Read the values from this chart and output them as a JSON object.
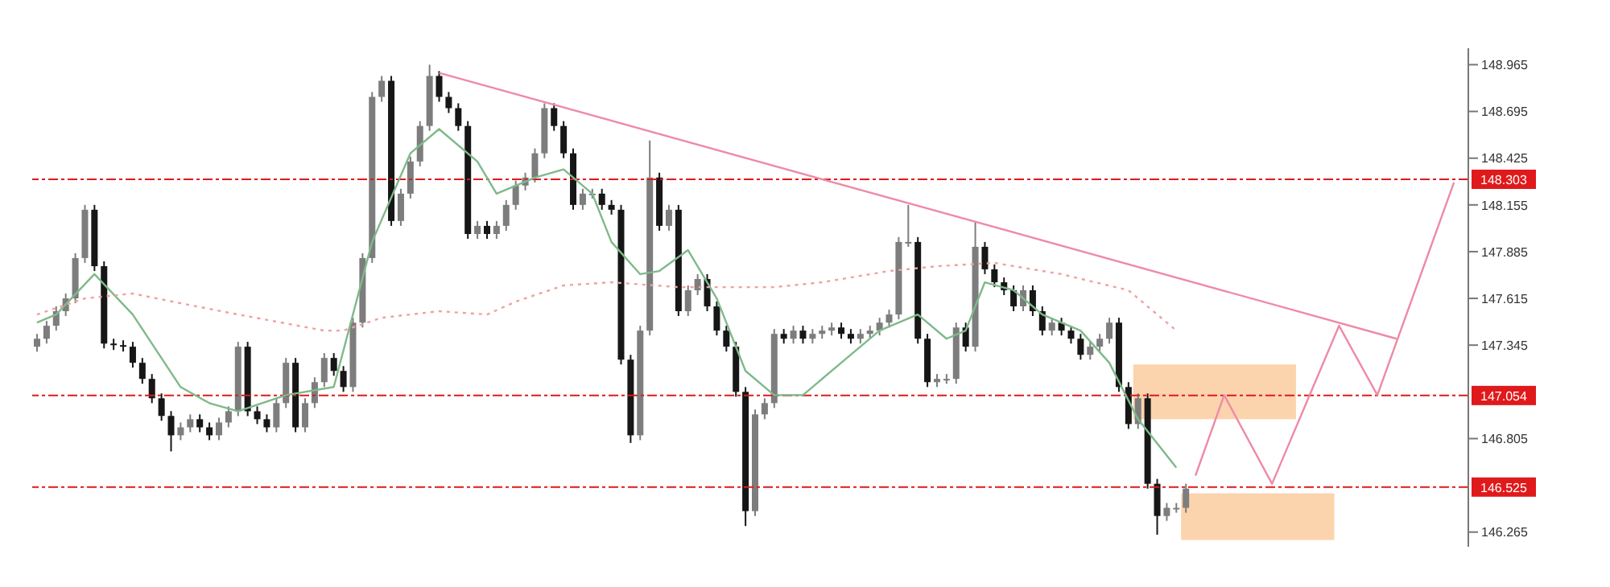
{
  "chart_data": {
    "type": "candlestick",
    "categories": [
      null,
      null,
      null,
      null,
      null,
      null,
      null,
      null,
      null,
      null,
      null,
      null,
      null,
      null,
      null,
      null,
      null,
      null,
      null,
      null,
      null,
      null,
      null,
      null,
      null,
      null,
      null,
      null,
      null,
      null,
      null,
      null,
      null,
      null,
      null,
      null,
      null,
      null,
      null,
      null,
      null,
      null,
      null,
      null,
      null,
      null,
      null,
      null,
      null,
      null,
      null,
      null,
      null,
      null,
      null,
      null,
      null,
      null,
      null,
      null,
      null,
      null,
      null,
      null,
      null,
      null,
      null,
      null,
      null,
      null,
      null,
      null,
      null,
      null,
      null,
      null,
      null,
      null,
      null,
      null,
      null,
      null,
      null,
      null,
      null,
      null,
      null,
      null,
      null,
      null,
      null,
      null,
      null,
      null,
      null,
      null,
      null,
      null,
      null,
      null,
      null,
      null,
      null,
      null,
      null,
      null,
      null,
      null,
      null,
      null,
      null,
      null,
      null,
      null,
      null,
      null,
      null,
      null,
      null,
      null,
      null,
      null,
      null,
      null,
      null,
      null,
      null,
      null,
      null,
      null,
      null,
      null,
      null,
      null,
      null,
      null,
      null,
      null,
      null,
      null,
      null,
      null,
      null,
      null,
      null,
      null,
      null,
      null,
      null,
      null
    ],
    "ohlc": [
      [
        147.336,
        147.41,
        147.308,
        147.382
      ],
      [
        147.382,
        147.485,
        147.354,
        147.457
      ],
      [
        147.457,
        147.569,
        147.429,
        147.541
      ],
      [
        147.541,
        147.643,
        147.513,
        147.615
      ],
      [
        147.615,
        147.876,
        147.587,
        147.848
      ],
      [
        147.848,
        148.155,
        147.82,
        148.127
      ],
      [
        148.127,
        148.155,
        147.773,
        147.801
      ],
      [
        147.801,
        147.829,
        147.326,
        147.354
      ],
      [
        147.354,
        147.382,
        147.317,
        147.345
      ],
      [
        147.345,
        147.373,
        147.308,
        147.336
      ],
      [
        147.336,
        147.364,
        147.215,
        147.243
      ],
      [
        147.243,
        147.271,
        147.122,
        147.15
      ],
      [
        147.15,
        147.178,
        147.01,
        147.038
      ],
      [
        147.038,
        147.066,
        146.908,
        146.936
      ],
      [
        146.936,
        146.964,
        146.731,
        146.824
      ],
      [
        146.824,
        146.898,
        146.796,
        146.87
      ],
      [
        146.87,
        146.945,
        146.842,
        146.917
      ],
      [
        146.917,
        146.945,
        146.842,
        146.87
      ],
      [
        146.87,
        146.898,
        146.796,
        146.824
      ],
      [
        146.824,
        146.926,
        146.796,
        146.898
      ],
      [
        146.898,
        146.991,
        146.87,
        146.963
      ],
      [
        146.963,
        147.364,
        146.935,
        147.336
      ],
      [
        147.336,
        147.364,
        146.935,
        146.963
      ],
      [
        146.963,
        146.991,
        146.889,
        146.917
      ],
      [
        146.917,
        146.945,
        146.842,
        146.87
      ],
      [
        146.87,
        147.038,
        146.842,
        147.01
      ],
      [
        147.01,
        147.271,
        146.982,
        147.243
      ],
      [
        147.243,
        147.271,
        146.842,
        146.87
      ],
      [
        146.87,
        147.038,
        146.842,
        147.01
      ],
      [
        147.01,
        147.159,
        146.982,
        147.131
      ],
      [
        147.131,
        147.299,
        147.103,
        147.271
      ],
      [
        147.271,
        147.299,
        147.168,
        147.196
      ],
      [
        147.196,
        147.224,
        147.075,
        147.103
      ],
      [
        147.103,
        147.503,
        147.075,
        147.475
      ],
      [
        147.475,
        147.876,
        147.447,
        147.848
      ],
      [
        147.848,
        148.807,
        147.82,
        148.779
      ],
      [
        148.779,
        148.9,
        148.751,
        148.872
      ],
      [
        148.872,
        148.9,
        148.034,
        148.062
      ],
      [
        148.062,
        148.248,
        148.034,
        148.22
      ],
      [
        148.22,
        148.434,
        148.192,
        148.406
      ],
      [
        148.406,
        148.639,
        148.378,
        148.611
      ],
      [
        148.611,
        148.965,
        148.583,
        148.9
      ],
      [
        148.9,
        148.928,
        148.751,
        148.779
      ],
      [
        148.779,
        148.807,
        148.686,
        148.714
      ],
      [
        148.714,
        148.742,
        148.583,
        148.611
      ],
      [
        148.611,
        148.639,
        147.959,
        147.987
      ],
      [
        147.987,
        148.062,
        147.959,
        148.034
      ],
      [
        148.034,
        148.062,
        147.959,
        147.987
      ],
      [
        147.987,
        148.062,
        147.959,
        148.034
      ],
      [
        148.034,
        148.183,
        148.006,
        148.155
      ],
      [
        148.155,
        148.295,
        148.127,
        148.267
      ],
      [
        148.267,
        148.341,
        148.239,
        148.313
      ],
      [
        148.313,
        148.481,
        148.285,
        148.453
      ],
      [
        148.453,
        148.742,
        148.425,
        148.714
      ],
      [
        148.714,
        148.742,
        148.583,
        148.611
      ],
      [
        148.611,
        148.639,
        148.425,
        148.453
      ],
      [
        148.453,
        148.481,
        148.127,
        148.155
      ],
      [
        148.155,
        148.248,
        148.127,
        148.22
      ],
      [
        148.22,
        148.248,
        148.192,
        148.22
      ],
      [
        148.22,
        148.248,
        148.127,
        148.155
      ],
      [
        148.155,
        148.183,
        148.099,
        148.127
      ],
      [
        148.127,
        148.155,
        147.233,
        147.261
      ],
      [
        147.261,
        147.289,
        146.78,
        146.824
      ],
      [
        146.824,
        147.457,
        146.796,
        147.429
      ],
      [
        147.429,
        148.527,
        147.401,
        148.313
      ],
      [
        148.313,
        148.341,
        148.006,
        148.034
      ],
      [
        148.034,
        148.155,
        148.006,
        148.127
      ],
      [
        148.127,
        148.155,
        147.513,
        147.541
      ],
      [
        147.541,
        147.69,
        147.513,
        147.662
      ],
      [
        147.662,
        147.755,
        147.634,
        147.727
      ],
      [
        147.727,
        147.755,
        147.541,
        147.569
      ],
      [
        147.569,
        147.597,
        147.401,
        147.429
      ],
      [
        147.429,
        147.457,
        147.308,
        147.336
      ],
      [
        147.336,
        147.364,
        147.047,
        147.075
      ],
      [
        147.075,
        147.103,
        146.3,
        146.386
      ],
      [
        146.386,
        146.973,
        146.358,
        146.945
      ],
      [
        146.945,
        147.038,
        146.917,
        147.01
      ],
      [
        147.01,
        147.438,
        146.982,
        147.41
      ],
      [
        147.41,
        147.438,
        147.354,
        147.382
      ],
      [
        147.382,
        147.457,
        147.354,
        147.429
      ],
      [
        147.429,
        147.457,
        147.354,
        147.382
      ],
      [
        147.382,
        147.438,
        147.354,
        147.41
      ],
      [
        147.41,
        147.457,
        147.382,
        147.429
      ],
      [
        147.429,
        147.475,
        147.401,
        147.447
      ],
      [
        147.447,
        147.475,
        147.382,
        147.41
      ],
      [
        147.41,
        147.438,
        147.354,
        147.382
      ],
      [
        147.382,
        147.438,
        147.354,
        147.41
      ],
      [
        147.41,
        147.457,
        147.382,
        147.429
      ],
      [
        147.429,
        147.503,
        147.401,
        147.475
      ],
      [
        147.475,
        147.55,
        147.447,
        147.522
      ],
      [
        147.522,
        147.969,
        147.494,
        147.941
      ],
      [
        147.941,
        148.155,
        147.913,
        147.941
      ],
      [
        147.941,
        147.969,
        147.354,
        147.382
      ],
      [
        147.382,
        147.41,
        147.103,
        147.131
      ],
      [
        147.131,
        147.178,
        147.103,
        147.15
      ],
      [
        147.15,
        147.178,
        147.122,
        147.15
      ],
      [
        147.15,
        147.475,
        147.122,
        147.447
      ],
      [
        147.447,
        147.475,
        147.308,
        147.336
      ],
      [
        147.336,
        148.053,
        147.308,
        147.913
      ],
      [
        147.913,
        147.941,
        147.755,
        147.783
      ],
      [
        147.783,
        147.811,
        147.68,
        147.708
      ],
      [
        147.708,
        147.736,
        147.634,
        147.662
      ],
      [
        147.662,
        147.69,
        147.541,
        147.569
      ],
      [
        147.569,
        147.69,
        147.541,
        147.662
      ],
      [
        147.662,
        147.69,
        147.513,
        147.541
      ],
      [
        147.541,
        147.569,
        147.401,
        147.429
      ],
      [
        147.429,
        147.503,
        147.401,
        147.475
      ],
      [
        147.475,
        147.503,
        147.401,
        147.429
      ],
      [
        147.429,
        147.457,
        147.354,
        147.382
      ],
      [
        147.382,
        147.41,
        147.261,
        147.289
      ],
      [
        147.289,
        147.364,
        147.261,
        147.336
      ],
      [
        147.336,
        147.41,
        147.308,
        147.382
      ],
      [
        147.382,
        147.503,
        147.354,
        147.475
      ],
      [
        147.475,
        147.503,
        147.075,
        147.103
      ],
      [
        147.103,
        147.131,
        146.861,
        146.889
      ],
      [
        146.889,
        147.066,
        146.861,
        147.038
      ],
      [
        147.038,
        147.066,
        146.516,
        146.544
      ],
      [
        146.544,
        146.572,
        146.25,
        146.358
      ],
      [
        146.358,
        146.433,
        146.33,
        146.405
      ],
      [
        146.405,
        146.433,
        146.377,
        146.405
      ],
      [
        146.405,
        146.544,
        146.377,
        146.516
      ],
      null,
      null,
      null,
      null,
      null,
      null,
      null,
      null,
      null,
      null,
      null,
      null,
      null,
      null,
      null,
      null,
      null,
      null,
      null,
      null,
      null,
      null,
      null,
      null,
      null,
      null,
      null,
      null,
      null
    ],
    "series": [
      {
        "type": "line",
        "color": "#7fb98a",
        "line_style": "solid",
        "values": [
          147.475,
          null,
          147.522,
          null,
          null,
          null,
          147.755,
          null,
          null,
          null,
          147.522,
          null,
          null,
          null,
          null,
          147.103,
          null,
          null,
          147.01,
          null,
          null,
          146.963,
          null,
          null,
          null,
          null,
          147.056,
          null,
          null,
          null,
          null,
          147.103,
          null,
          null,
          null,
          147.941,
          null,
          null,
          null,
          148.453,
          null,
          null,
          148.593,
          null,
          null,
          null,
          148.406,
          null,
          148.22,
          null,
          null,
          null,
          148.313,
          null,
          null,
          148.36,
          null,
          null,
          148.22,
          null,
          147.941,
          null,
          null,
          147.755,
          null,
          147.773,
          null,
          null,
          147.894,
          null,
          null,
          147.615,
          null,
          null,
          147.196,
          null,
          null,
          147.056,
          null,
          null,
          147.056,
          null,
          null,
          null,
          147.243,
          null,
          null,
          null,
          147.429,
          null,
          147.475,
          null,
          147.522,
          null,
          null,
          147.382,
          null,
          147.429,
          null,
          147.708,
          null,
          null,
          147.662,
          null,
          null,
          147.522,
          null,
          null,
          null,
          147.429,
          null,
          null,
          147.243,
          null,
          null,
          146.917,
          null,
          null,
          null,
          146.638,
          null,
          null,
          null,
          null,
          null,
          null,
          null,
          null,
          null,
          null,
          null,
          null,
          null,
          null,
          null,
          null,
          null,
          null,
          null,
          null,
          null,
          null,
          null,
          null,
          null,
          null,
          null,
          null,
          null,
          null
        ]
      },
      {
        "type": "line",
        "color": "#f2a0a0",
        "line_style": "dotted",
        "values": [
          147.522,
          null,
          null,
          null,
          null,
          147.615,
          null,
          null,
          null,
          null,
          147.643,
          null,
          null,
          null,
          null,
          147.587,
          null,
          null,
          null,
          null,
          null,
          147.522,
          null,
          null,
          null,
          null,
          null,
          null,
          null,
          null,
          147.429,
          null,
          147.429,
          null,
          null,
          null,
          147.503,
          null,
          null,
          null,
          null,
          null,
          147.541,
          null,
          null,
          null,
          null,
          147.522,
          null,
          null,
          147.596,
          null,
          null,
          null,
          null,
          147.69,
          null,
          null,
          null,
          null,
          147.708,
          null,
          null,
          null,
          null,
          null,
          null,
          147.68,
          null,
          null,
          null,
          null,
          147.68,
          null,
          null,
          null,
          null,
          147.68,
          null,
          null,
          null,
          null,
          147.708,
          null,
          null,
          null,
          null,
          null,
          null,
          147.773,
          null,
          null,
          null,
          null,
          147.801,
          null,
          null,
          null,
          null,
          null,
          147.82,
          null,
          null,
          null,
          null,
          null,
          null,
          147.755,
          null,
          null,
          null,
          null,
          null,
          null,
          147.662,
          null,
          null,
          null,
          null,
          147.429,
          null,
          null,
          null,
          null,
          null,
          null,
          null,
          null,
          null,
          null,
          null,
          null,
          null,
          null,
          null,
          null,
          null,
          null,
          null,
          null,
          null,
          null,
          null,
          null,
          null,
          null,
          null,
          null,
          null,
          null
        ]
      },
      {
        "type": "line",
        "color": "#ee8aa6",
        "line_style": "solid",
        "values": [
          null,
          null,
          null,
          null,
          null,
          null,
          null,
          null,
          null,
          null,
          null,
          null,
          null,
          null,
          null,
          null,
          null,
          null,
          null,
          null,
          null,
          null,
          null,
          null,
          null,
          null,
          null,
          null,
          null,
          null,
          null,
          null,
          null,
          null,
          null,
          null,
          null,
          null,
          null,
          null,
          null,
          null,
          148.918,
          null,
          null,
          null,
          null,
          null,
          null,
          null,
          null,
          null,
          null,
          null,
          null,
          null,
          null,
          null,
          null,
          null,
          null,
          null,
          null,
          null,
          null,
          null,
          null,
          null,
          null,
          null,
          null,
          null,
          null,
          null,
          null,
          null,
          null,
          null,
          null,
          null,
          null,
          null,
          null,
          null,
          null,
          null,
          null,
          null,
          null,
          null,
          null,
          null,
          null,
          null,
          null,
          null,
          null,
          null,
          null,
          null,
          null,
          null,
          null,
          null,
          null,
          null,
          null,
          null,
          null,
          null,
          null,
          null,
          null,
          null,
          null,
          null,
          null,
          null,
          null,
          null,
          null,
          null,
          null,
          null,
          null,
          null,
          null,
          null,
          null,
          null,
          null,
          null,
          null,
          null,
          null,
          null,
          null,
          null,
          null,
          null,
          null,
          null,
          147.382,
          null,
          null,
          null,
          null,
          null,
          null,
          null
        ]
      },
      {
        "type": "line",
        "color": "#ee8aa6",
        "line_style": "solid",
        "values": [
          null,
          null,
          null,
          null,
          null,
          null,
          null,
          null,
          null,
          null,
          null,
          null,
          null,
          null,
          null,
          null,
          null,
          null,
          null,
          null,
          null,
          null,
          null,
          null,
          null,
          null,
          null,
          null,
          null,
          null,
          null,
          null,
          null,
          null,
          null,
          null,
          null,
          null,
          null,
          null,
          null,
          null,
          null,
          null,
          null,
          null,
          null,
          null,
          null,
          null,
          null,
          null,
          null,
          null,
          null,
          null,
          null,
          null,
          null,
          null,
          null,
          null,
          null,
          null,
          null,
          null,
          null,
          null,
          null,
          null,
          null,
          null,
          null,
          null,
          null,
          null,
          null,
          null,
          null,
          null,
          null,
          null,
          null,
          null,
          null,
          null,
          null,
          null,
          null,
          null,
          null,
          null,
          null,
          null,
          null,
          null,
          null,
          null,
          null,
          null,
          null,
          null,
          null,
          null,
          null,
          null,
          null,
          null,
          null,
          null,
          null,
          null,
          null,
          null,
          null,
          null,
          null,
          null,
          null,
          null,
          null,
          146.591,
          null,
          null,
          147.056,
          null,
          null,
          null,
          null,
          146.544,
          null,
          null,
          null,
          null,
          null,
          null,
          147.457,
          null,
          null,
          null,
          147.056,
          null,
          null,
          null,
          null,
          null,
          null,
          null,
          148.285,
          null
        ]
      }
    ],
    "ylim": [
      146.18,
      149.06
    ],
    "yticks": [
      146.265,
      146.805,
      147.345,
      147.615,
      147.885,
      148.155,
      148.425,
      148.695,
      148.965
    ],
    "tick_labels": "y",
    "ref_lines": [
      {
        "axis": "y",
        "value": 148.303,
        "label": "148.303",
        "color": "#e0191b",
        "line_style": "dashed"
      },
      {
        "axis": "y",
        "value": 147.054,
        "label": "147.054",
        "color": "#e0191b",
        "line_style": "dashed"
      },
      {
        "axis": "y",
        "value": 146.525,
        "label": "146.525",
        "color": "#e0191b",
        "line_style": "dashed"
      }
    ],
    "bands": [
      {
        "axis": "y",
        "from": 146.917,
        "to": 147.233,
        "color": "#fbd3ad"
      },
      {
        "axis": "y",
        "from": 146.219,
        "to": 146.489,
        "color": "#fbd3ad"
      }
    ]
  }
}
